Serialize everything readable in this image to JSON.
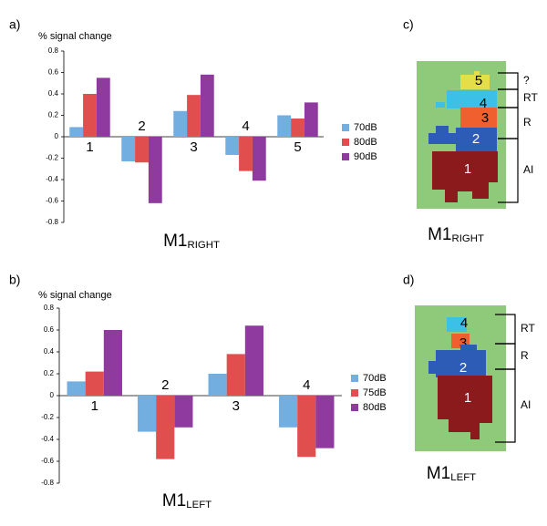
{
  "chart_data": [
    {
      "type": "bar",
      "panel": "a)",
      "ylabel": "% signal change",
      "title": "M1",
      "title_sub": "RIGHT",
      "categories": [
        "1",
        "2",
        "3",
        "4",
        "5"
      ],
      "series": [
        {
          "name": "70dB",
          "color": "#72aee0",
          "values": [
            0.09,
            -0.23,
            0.24,
            -0.17,
            0.2
          ]
        },
        {
          "name": "80dB",
          "color": "#e04e4e",
          "values": [
            0.4,
            -0.24,
            0.39,
            -0.32,
            0.17
          ]
        },
        {
          "name": "90dB",
          "color": "#8e3a9e",
          "values": [
            0.55,
            -0.62,
            0.58,
            -0.41,
            0.32
          ]
        }
      ],
      "ylim": [
        -0.8,
        0.8
      ],
      "yticks": [
        -0.8,
        -0.6,
        -0.4,
        -0.2,
        0,
        0.2,
        0.4,
        0.6,
        0.8
      ]
    },
    {
      "type": "bar",
      "panel": "b)",
      "ylabel": "% signal change",
      "title": "M1",
      "title_sub": "LEFT",
      "categories": [
        "1",
        "2",
        "3",
        "4"
      ],
      "series": [
        {
          "name": "70dB",
          "color": "#72aee0",
          "values": [
            0.13,
            -0.33,
            0.2,
            -0.29
          ]
        },
        {
          "name": "75dB",
          "color": "#e04e4e",
          "values": [
            0.22,
            -0.58,
            0.38,
            -0.56
          ]
        },
        {
          "name": "80dB",
          "color": "#8e3a9e",
          "values": [
            0.6,
            -0.29,
            0.64,
            -0.48
          ]
        }
      ],
      "ylim": [
        -0.8,
        0.8
      ],
      "yticks": [
        -0.8,
        -0.6,
        -0.4,
        -0.2,
        0,
        0.2,
        0.4,
        0.6,
        0.8
      ]
    }
  ],
  "maps": [
    {
      "panel": "c)",
      "title": "M1",
      "title_sub": "RIGHT",
      "regions": [
        "5",
        "4",
        "3",
        "2",
        "1"
      ],
      "brackets": [
        "?",
        "RT",
        "R",
        "AI"
      ]
    },
    {
      "panel": "d)",
      "title": "M1",
      "title_sub": "LEFT",
      "regions": [
        "4",
        "3",
        "2",
        "1"
      ],
      "brackets": [
        "RT",
        "R",
        "AI"
      ]
    }
  ]
}
